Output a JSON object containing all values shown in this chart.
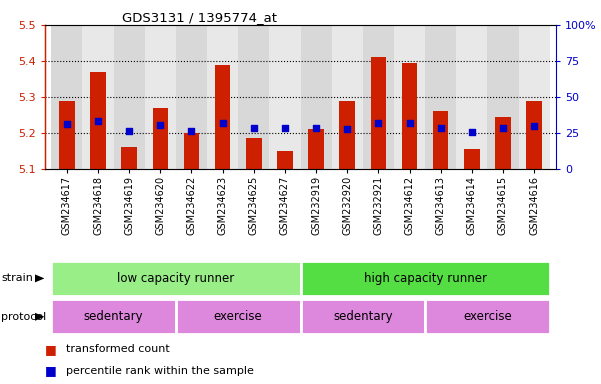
{
  "title": "GDS3131 / 1395774_at",
  "samples": [
    "GSM234617",
    "GSM234618",
    "GSM234619",
    "GSM234620",
    "GSM234622",
    "GSM234623",
    "GSM234625",
    "GSM234627",
    "GSM232919",
    "GSM232920",
    "GSM232921",
    "GSM234612",
    "GSM234613",
    "GSM234614",
    "GSM234615",
    "GSM234616"
  ],
  "bar_values": [
    5.29,
    5.37,
    5.16,
    5.27,
    5.2,
    5.39,
    5.185,
    5.15,
    5.21,
    5.29,
    5.41,
    5.395,
    5.26,
    5.155,
    5.245,
    5.29
  ],
  "blue_dot_values": [
    5.224,
    5.233,
    5.205,
    5.223,
    5.205,
    5.228,
    5.214,
    5.214,
    5.213,
    5.21,
    5.228,
    5.228,
    5.215,
    5.204,
    5.215,
    5.22
  ],
  "bar_bottom": 5.1,
  "ylim_left": [
    5.1,
    5.5
  ],
  "ylim_right": [
    0,
    100
  ],
  "yticks_left": [
    5.1,
    5.2,
    5.3,
    5.4,
    5.5
  ],
  "yticks_right": [
    0,
    25,
    50,
    75,
    100
  ],
  "ytick_labels_right": [
    "0",
    "25",
    "50",
    "75",
    "100%"
  ],
  "bar_color": "#cc2000",
  "dot_color": "#0000cc",
  "strain_groups": [
    {
      "label": "low capacity runner",
      "start": 0,
      "end": 7
    },
    {
      "label": "high capacity runner",
      "start": 8,
      "end": 15
    }
  ],
  "protocol_groups": [
    {
      "label": "sedentary",
      "start": 0,
      "end": 3
    },
    {
      "label": "exercise",
      "start": 4,
      "end": 7
    },
    {
      "label": "sedentary",
      "start": 8,
      "end": 11
    },
    {
      "label": "exercise",
      "start": 12,
      "end": 15
    }
  ],
  "strain_color": "#99ee88",
  "strain_color2": "#55dd44",
  "protocol_color": "#dd88dd",
  "col_bg_even": "#d8d8d8",
  "col_bg_odd": "#e8e8e8",
  "legend_red": "transformed count",
  "legend_blue": "percentile rank within the sample",
  "grid_lines": [
    5.2,
    5.3,
    5.4
  ]
}
